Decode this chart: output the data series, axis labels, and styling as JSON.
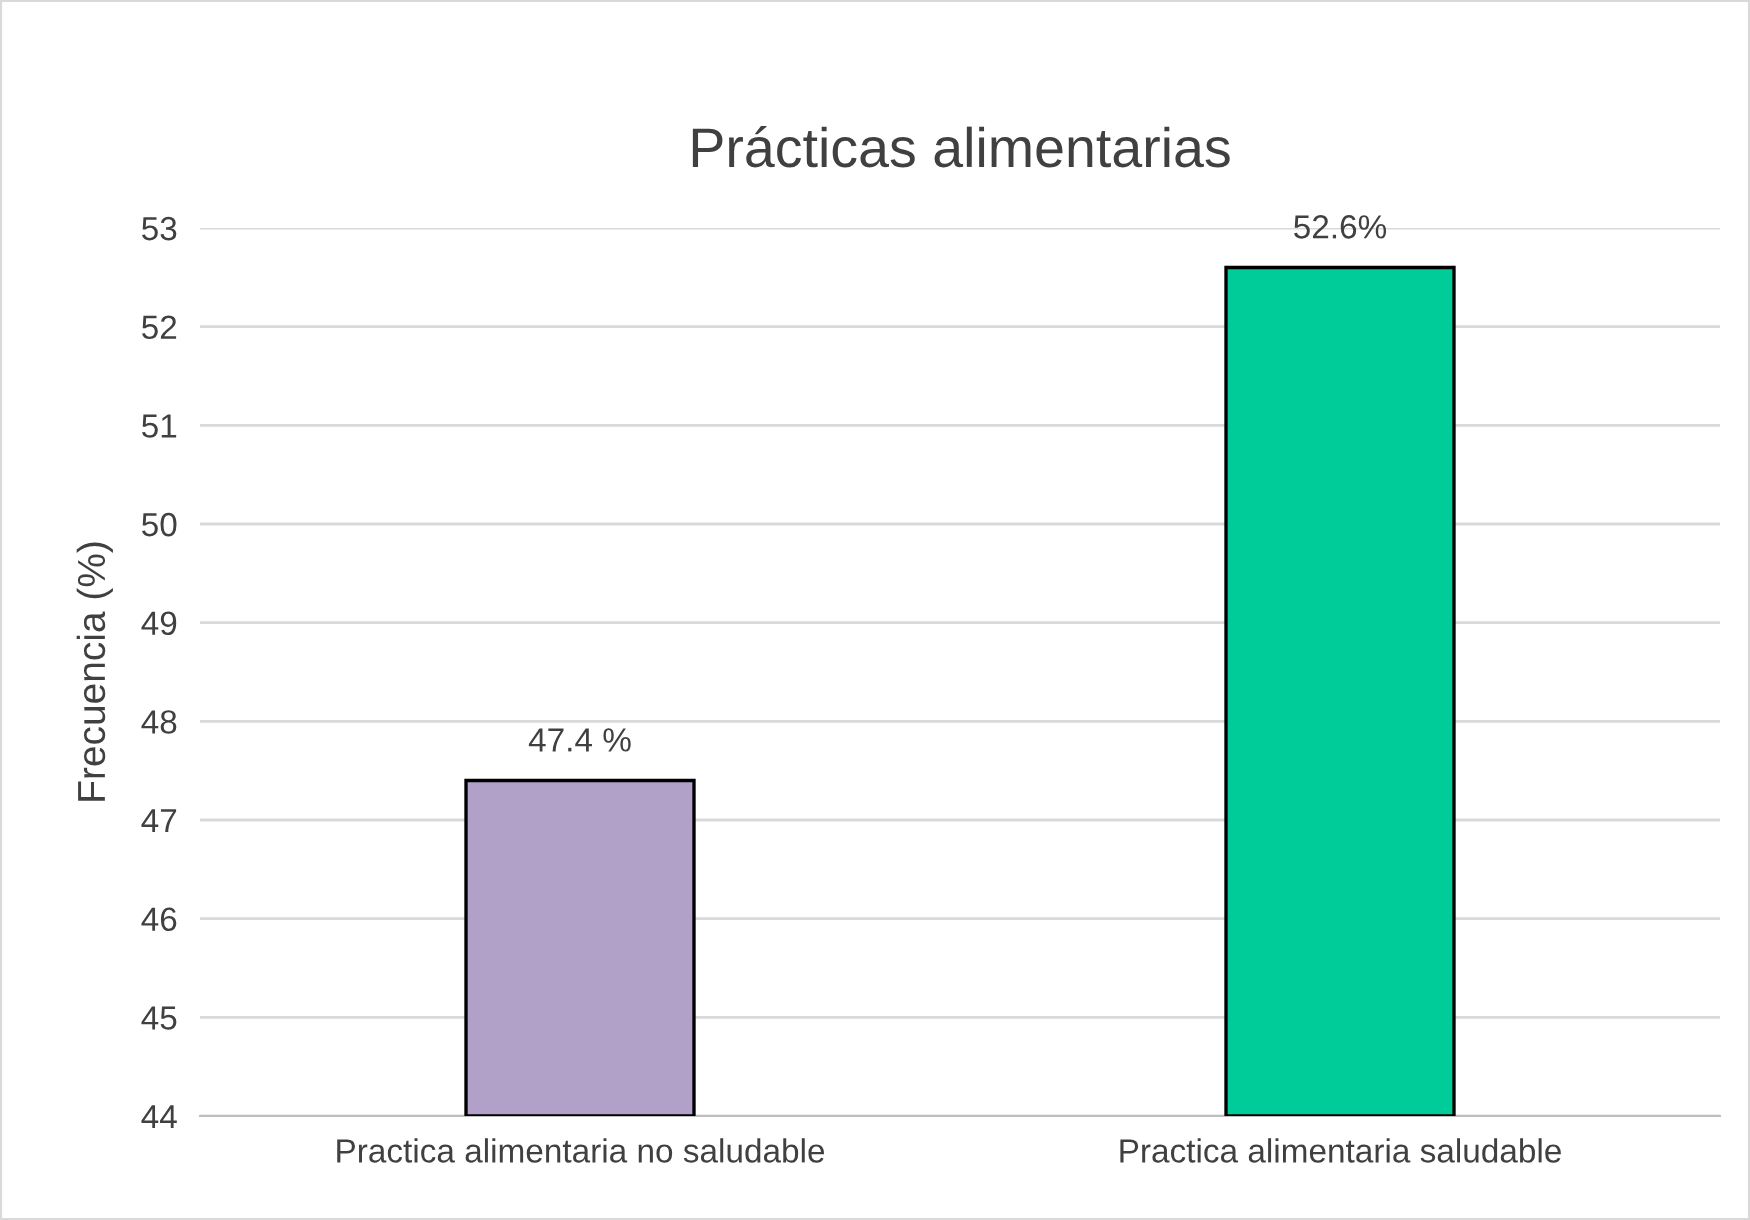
{
  "chart_data": {
    "type": "bar",
    "title": "Prácticas alimentarias",
    "ylabel": "Frecuencia (%)",
    "categories": [
      "Practica alimentaria no saludable",
      "Practica alimentaria saludable"
    ],
    "values": [
      47.4,
      52.6
    ],
    "colors": [
      "#b1a0c7",
      "#00cc99"
    ],
    "value_labels": [
      "47.4 %",
      "52.6%"
    ],
    "ylim": [
      44,
      53
    ],
    "yticks": [
      44,
      45,
      46,
      47,
      48,
      49,
      50,
      51,
      52,
      53
    ],
    "grid": "y"
  }
}
